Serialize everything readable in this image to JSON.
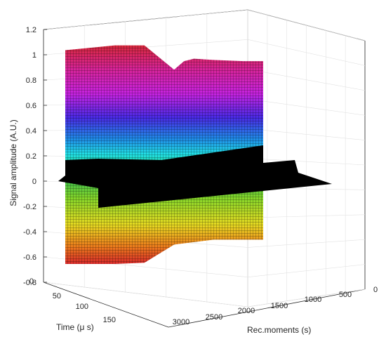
{
  "chart_data": {
    "type": "surface",
    "ylabel": "Signal amplitude (A.U.)",
    "xlabel": "Rec.moments (s)",
    "tlabel": "Time (μ s)",
    "zlim": [
      -0.8,
      1.2
    ],
    "z_ticks": [
      "-0.8",
      "-0.6",
      "-0.4",
      "-0.2",
      "0",
      "0.2",
      "0.4",
      "0.6",
      "0.8",
      "1",
      "1.2"
    ],
    "t_ticks": [
      "0",
      "50",
      "100",
      "150"
    ],
    "rec_ticks": [
      "3000",
      "2500",
      "2000",
      "1500",
      "1000",
      "500",
      "0"
    ],
    "grid": true,
    "colormap": "hsv",
    "series": [
      {
        "role": "upper envelope",
        "rec_moments": [
          2500,
          2000,
          1700,
          1400,
          1300,
          1200,
          1000,
          700,
          500
        ],
        "values": [
          1.02,
          1.06,
          1.06,
          0.86,
          0.93,
          0.95,
          0.94,
          0.93,
          0.93
        ]
      },
      {
        "role": "lower envelope",
        "rec_moments": [
          2500,
          2000,
          1700,
          1400,
          1000,
          700,
          500
        ],
        "values": [
          -0.74,
          -0.74,
          -0.73,
          -0.58,
          -0.54,
          -0.54,
          -0.54
        ]
      }
    ]
  }
}
